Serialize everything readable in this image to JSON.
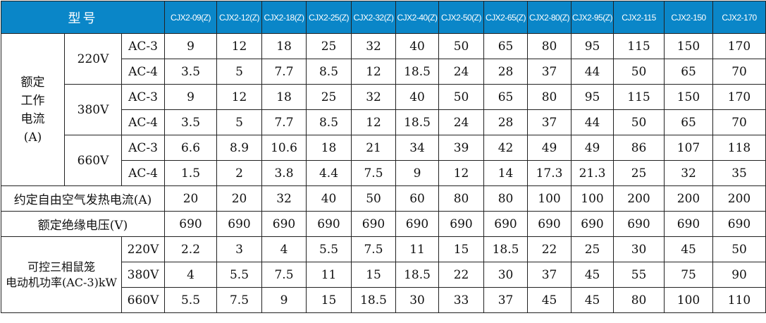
{
  "header": {
    "title": "型号",
    "models": [
      "CJX2-09(Z)",
      "CJX2-12(Z)",
      "CJX2-18(Z)",
      "CJX2-25(Z)",
      "CJX2-32(Z)",
      "CJX2-40(Z)",
      "CJX2-50(Z)",
      "CJX2-65(Z)",
      "CJX2-80(Z)",
      "CJX2-95(Z)",
      "CJX2-115",
      "CJX2-150",
      "CJX2-170"
    ]
  },
  "colors": {
    "header_bg": "#0a86c8",
    "header_text": "#ffffff"
  },
  "rated_current": {
    "label": "额定工作电流(A)",
    "label_lines": [
      "额定",
      "工作",
      "电流",
      "(A)"
    ],
    "groups": [
      {
        "voltage": "220V",
        "rows": [
          {
            "category": "AC-3",
            "values": [
              "9",
              "12",
              "18",
              "25",
              "32",
              "40",
              "50",
              "65",
              "80",
              "95",
              "115",
              "150",
              "170"
            ]
          },
          {
            "category": "AC-4",
            "values": [
              "3.5",
              "5",
              "7.7",
              "8.5",
              "12",
              "18.5",
              "24",
              "28",
              "37",
              "44",
              "50",
              "65",
              "70"
            ]
          }
        ]
      },
      {
        "voltage": "380V",
        "rows": [
          {
            "category": "AC-3",
            "values": [
              "9",
              "12",
              "18",
              "25",
              "32",
              "40",
              "50",
              "65",
              "80",
              "95",
              "115",
              "150",
              "170"
            ]
          },
          {
            "category": "AC-4",
            "values": [
              "3.5",
              "5",
              "7.7",
              "8.5",
              "12",
              "18.5",
              "24",
              "28",
              "37",
              "44",
              "50",
              "65",
              "70"
            ]
          }
        ]
      },
      {
        "voltage": "660V",
        "rows": [
          {
            "category": "AC-3",
            "values": [
              "6.6",
              "8.9",
              "10.6",
              "18",
              "21",
              "34",
              "39",
              "42",
              "49",
              "49",
              "86",
              "107",
              "118"
            ]
          },
          {
            "category": "AC-4",
            "values": [
              "1.5",
              "2",
              "3.8",
              "4.4",
              "7.5",
              "9",
              "12",
              "14",
              "17.3",
              "21.3",
              "25",
              "32",
              "35"
            ]
          }
        ]
      }
    ]
  },
  "thermal_current": {
    "label": "约定自由空气发热电流(A)",
    "values": [
      "20",
      "20",
      "32",
      "40",
      "50",
      "60",
      "80",
      "80",
      "100",
      "100",
      "200",
      "200",
      "200"
    ]
  },
  "insulation_voltage": {
    "label": "额定绝缘电压(V)",
    "values": [
      "690",
      "690",
      "690",
      "690",
      "690",
      "690",
      "690",
      "690",
      "690",
      "690",
      "690",
      "690",
      "690"
    ]
  },
  "motor_power": {
    "label_lines": [
      "可控三相鼠笼",
      "电动机功率(AC-3)kW"
    ],
    "rows": [
      {
        "voltage": "220V",
        "values": [
          "2.2",
          "3",
          "4",
          "5.5",
          "7.5",
          "11",
          "15",
          "18.5",
          "22",
          "25",
          "30",
          "45",
          "50"
        ]
      },
      {
        "voltage": "380V",
        "values": [
          "4",
          "5.5",
          "7.5",
          "11",
          "15",
          "18.5",
          "22",
          "30",
          "37",
          "45",
          "55",
          "75",
          "90"
        ]
      },
      {
        "voltage": "660V",
        "values": [
          "5.5",
          "7.5",
          "9",
          "15",
          "18.5",
          "30",
          "33",
          "37",
          "45",
          "45",
          "80",
          "100",
          "110"
        ]
      }
    ]
  }
}
